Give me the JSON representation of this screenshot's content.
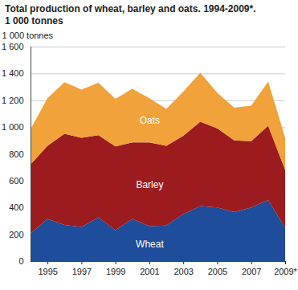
{
  "chart_data": {
    "type": "area",
    "stacked": true,
    "title": "Total production of wheat, barley and oats. 1994-2009*.",
    "subtitle": "1 000 tonnes",
    "y_label": "1 000 tonnes",
    "x": [
      1994,
      1995,
      1996,
      1997,
      1998,
      1999,
      2000,
      2001,
      2002,
      2003,
      2004,
      2005,
      2006,
      2007,
      2008,
      2009
    ],
    "series": [
      {
        "name": "Wheat",
        "color": "#1e4d9b",
        "values": [
          205,
          315,
          270,
          255,
          325,
          230,
          315,
          260,
          265,
          350,
          410,
          400,
          365,
          400,
          455,
          250
        ]
      },
      {
        "name": "Barley",
        "color": "#9b1b1e",
        "values": [
          515,
          545,
          680,
          665,
          615,
          625,
          570,
          625,
          595,
          585,
          630,
          590,
          535,
          495,
          555,
          430
        ]
      },
      {
        "name": "Oats",
        "color": "#f2a23a",
        "values": [
          265,
          355,
          385,
          360,
          390,
          355,
          400,
          330,
          275,
          330,
          365,
          265,
          245,
          265,
          330,
          240
        ]
      }
    ],
    "xlim": [
      1994,
      2009
    ],
    "xticks": [
      1995,
      1997,
      1999,
      2001,
      2003,
      2005,
      2007,
      {
        "value": 2009,
        "label": "2009*"
      }
    ],
    "ylim": [
      0,
      1600
    ],
    "yticks": [
      0,
      200,
      400,
      600,
      800,
      {
        "value": 1000,
        "label": "1 000"
      },
      {
        "value": 1200,
        "label": "1 200"
      },
      {
        "value": 1400,
        "label": "1 400"
      },
      {
        "value": 1600,
        "label": "1 600"
      }
    ],
    "grid": true
  }
}
